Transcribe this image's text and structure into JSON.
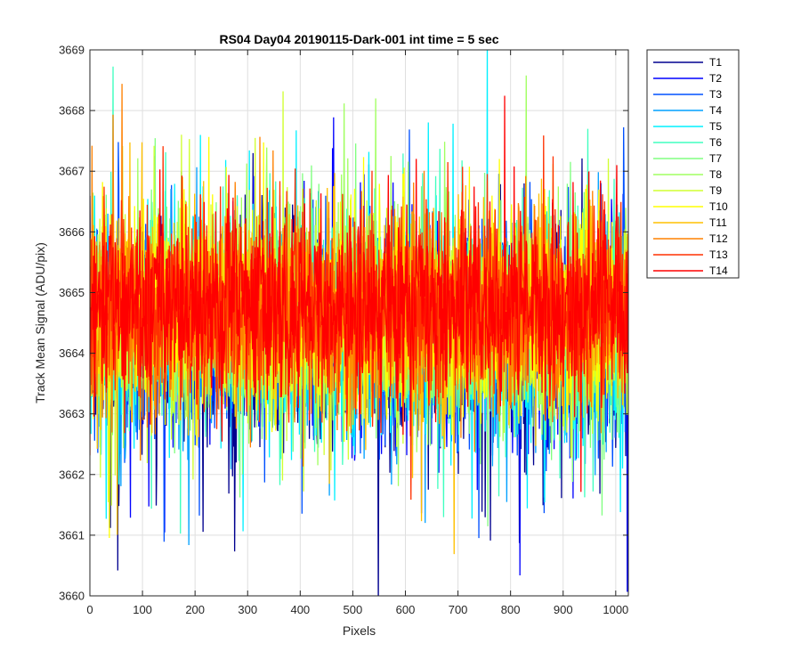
{
  "chart_data": {
    "type": "line",
    "title": "RS04 Day04 20190115-Dark-001 int time = 5 sec",
    "xlabel": "Pixels",
    "ylabel": "Track Mean Signal (ADU/pix)",
    "xlim": [
      0,
      1024
    ],
    "ylim": [
      3660,
      3669
    ],
    "xticks": [
      0,
      100,
      200,
      300,
      400,
      500,
      600,
      700,
      800,
      900,
      1000
    ],
    "yticks": [
      3660,
      3661,
      3662,
      3663,
      3664,
      3665,
      3666,
      3667,
      3668,
      3669
    ],
    "grid": true,
    "legend_position": "outside-top-right",
    "n_points_per_series": 1024,
    "series": [
      {
        "name": "T1",
        "color": "#00008f",
        "mean": 3664.2,
        "noise_amplitude": 1.15
      },
      {
        "name": "T2",
        "color": "#0000ff",
        "mean": 3664.3,
        "noise_amplitude": 1.15
      },
      {
        "name": "T3",
        "color": "#0050ff",
        "mean": 3664.3,
        "noise_amplitude": 1.1
      },
      {
        "name": "T4",
        "color": "#00a0ff",
        "mean": 3664.4,
        "noise_amplitude": 1.1
      },
      {
        "name": "T5",
        "color": "#00f0ff",
        "mean": 3664.4,
        "noise_amplitude": 1.1
      },
      {
        "name": "T6",
        "color": "#40ffbf",
        "mean": 3664.5,
        "noise_amplitude": 1.05
      },
      {
        "name": "T7",
        "color": "#80ff80",
        "mean": 3664.5,
        "noise_amplitude": 1.05
      },
      {
        "name": "T8",
        "color": "#a0ff60",
        "mean": 3664.6,
        "noise_amplitude": 1.05
      },
      {
        "name": "T9",
        "color": "#d0ff30",
        "mean": 3664.6,
        "noise_amplitude": 1.05
      },
      {
        "name": "T10",
        "color": "#ffff00",
        "mean": 3664.7,
        "noise_amplitude": 1.05
      },
      {
        "name": "T11",
        "color": "#ffc000",
        "mean": 3664.7,
        "noise_amplitude": 1.0
      },
      {
        "name": "T12",
        "color": "#ff8000",
        "mean": 3664.7,
        "noise_amplitude": 1.0
      },
      {
        "name": "T13",
        "color": "#ff3000",
        "mean": 3664.75,
        "noise_amplitude": 1.0
      },
      {
        "name": "T14",
        "color": "#ff0000",
        "mean": 3664.75,
        "noise_amplitude": 0.95
      }
    ]
  }
}
